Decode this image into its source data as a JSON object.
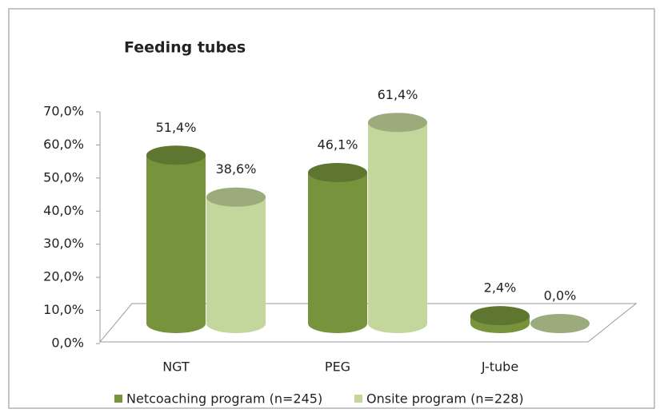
{
  "chart_data": {
    "type": "bar3d",
    "title": "Feeding tubes",
    "categories": [
      "NGT",
      "PEG",
      "J-tube"
    ],
    "series": [
      {
        "name": "Netcoaching program (n=245)",
        "color": "#77933c",
        "values": [
          51.4,
          46.1,
          2.4
        ],
        "value_labels": [
          "51,4%",
          "46,1%",
          "2,4%"
        ]
      },
      {
        "name": "Onsite program (n=228)",
        "color": "#c3d69b",
        "values": [
          38.6,
          61.4,
          0.0
        ],
        "value_labels": [
          "38,6%",
          "61,4%",
          "0,0%"
        ]
      }
    ],
    "ylim": [
      0,
      70
    ],
    "yticks": [
      {
        "value": 0,
        "label": "0,0%"
      },
      {
        "value": 10,
        "label": "10,0%"
      },
      {
        "value": 20,
        "label": "20,0%"
      },
      {
        "value": 30,
        "label": "30,0%"
      },
      {
        "value": 40,
        "label": "40,0%"
      },
      {
        "value": 50,
        "label": "50,0%"
      },
      {
        "value": 60,
        "label": "60,0%"
      },
      {
        "value": 70,
        "label": "70,0%"
      }
    ],
    "legend": "bottom"
  }
}
